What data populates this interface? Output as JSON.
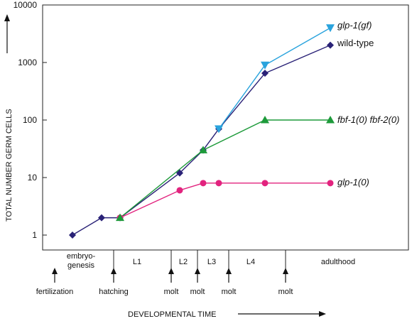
{
  "chart_data": {
    "type": "line",
    "ylabel": "TOTAL NUMBER GERM CELLS",
    "xlabel": "DEVELOPMENTAL TIME",
    "yscale": "log",
    "ylim": [
      0.5,
      10000
    ],
    "yticks": [
      1,
      10,
      100,
      1000,
      10000
    ],
    "ytick_labels": [
      "1",
      "10",
      "100",
      "1000",
      "10000"
    ],
    "grid": false,
    "stages": [
      "embryo-\ngenesis",
      "L1",
      "L2",
      "L3",
      "L4",
      "adulthood"
    ],
    "events": [
      "fertilization",
      "hatching",
      "molt",
      "molt",
      "molt",
      "molt"
    ],
    "series": [
      {
        "name": "glp-1(gf)",
        "italic_name": true,
        "color": "#29a3dd",
        "marker": "triangle-down",
        "points": [
          {
            "t": "L3 early",
            "y": 70
          },
          {
            "t": "L4 mid",
            "y": 900
          },
          {
            "t": "adult",
            "y": 4000
          }
        ]
      },
      {
        "name": "wild-type",
        "italic_name": false,
        "color": "#2a2277",
        "marker": "diamond",
        "points": [
          {
            "t": "fertilization",
            "y": 1
          },
          {
            "t": "mid-embryo",
            "y": 2
          },
          {
            "t": "hatching",
            "y": 2
          },
          {
            "t": "late L2",
            "y": 12
          },
          {
            "t": "L2/L3 molt",
            "y": 30
          },
          {
            "t": "L3 early",
            "y": 70
          },
          {
            "t": "L4 mid",
            "y": 650
          },
          {
            "t": "adult",
            "y": 2000
          }
        ]
      },
      {
        "name": "fbf-1(0) fbf-2(0)",
        "italic_name": true,
        "color": "#1d9a3a",
        "marker": "triangle-up",
        "points": [
          {
            "t": "hatching",
            "y": 2
          },
          {
            "t": "L2/L3 molt",
            "y": 30
          },
          {
            "t": "L4 mid",
            "y": 100
          },
          {
            "t": "adult",
            "y": 100
          }
        ]
      },
      {
        "name": "glp-1(0)",
        "italic_name": true,
        "color": "#e2237e",
        "marker": "circle",
        "points": [
          {
            "t": "hatching",
            "y": 2
          },
          {
            "t": "late L2",
            "y": 6
          },
          {
            "t": "L2/L3 molt",
            "y": 8
          },
          {
            "t": "L3 early",
            "y": 8
          },
          {
            "t": "L4 mid",
            "y": 8
          },
          {
            "t": "adult",
            "y": 8
          }
        ]
      }
    ]
  }
}
